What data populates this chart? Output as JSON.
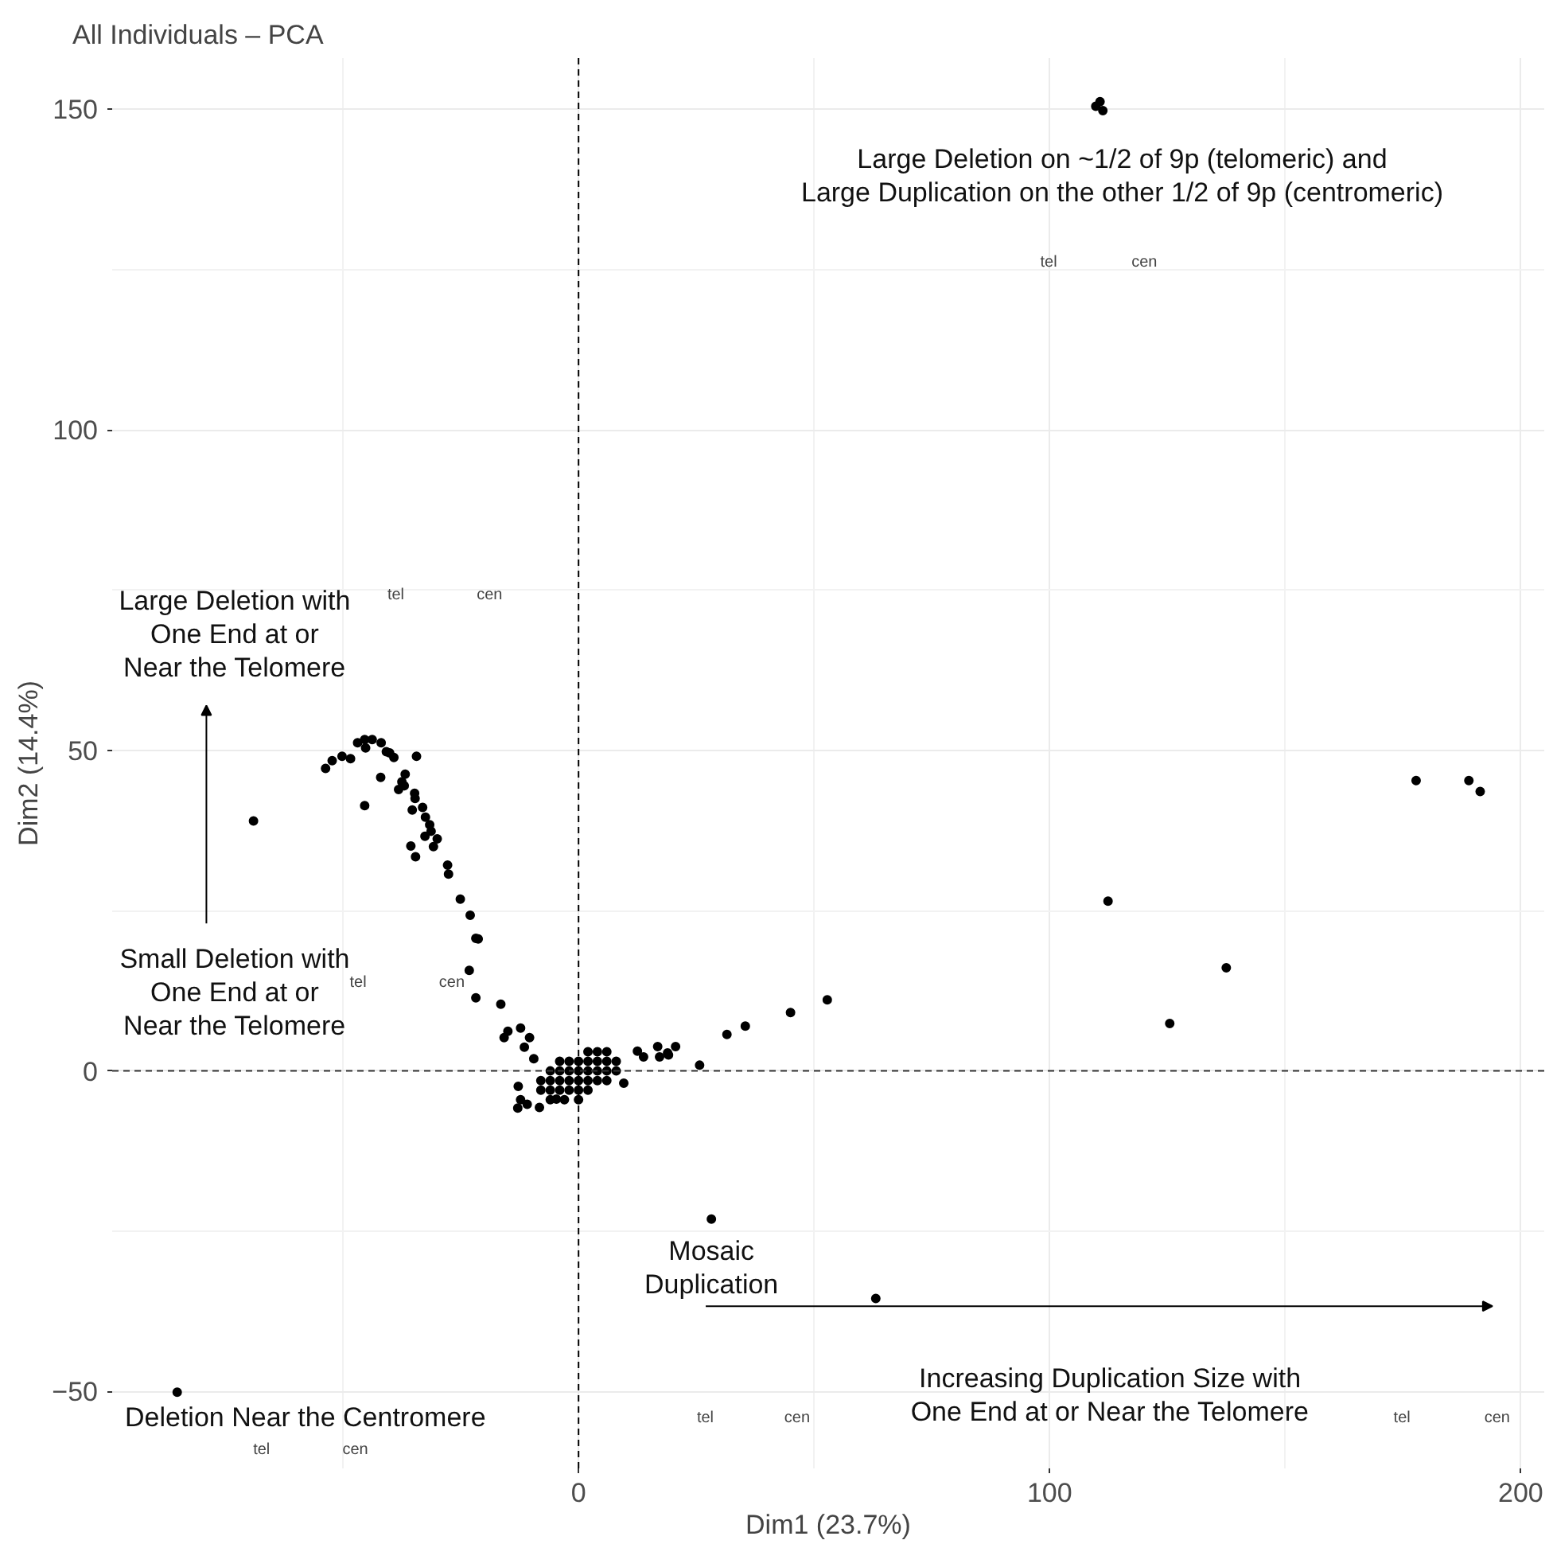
{
  "chart_data": {
    "type": "scatter",
    "title": "All Individuals – PCA",
    "xlabel": "Dim1 (23.7%)",
    "ylabel": "Dim2 (14.4%)",
    "xlim": [
      -99,
      205
    ],
    "ylim": [
      -62,
      158
    ],
    "xticks": [
      0,
      100,
      200
    ],
    "yticks": [
      {
        "value": -50,
        "label": "−50"
      },
      0,
      50,
      100,
      150
    ],
    "grid": true,
    "marker": "circle",
    "ref_lines": [
      {
        "axis": "x",
        "value": 0,
        "color": "#000000",
        "line_style": "dashed"
      },
      {
        "axis": "y",
        "value": 0,
        "color": "#333333",
        "line_style": "dashed"
      }
    ],
    "series": [
      {
        "color": "#000000",
        "x": [
          110.7,
          111.3,
          109.8,
          177.8,
          189,
          191.4,
          112.4,
          137.5,
          125.5,
          28.2,
          63.1,
          52.8,
          45,
          35.4,
          31.5,
          25.7,
          20.6,
          16.8,
          17.2,
          19.1,
          12.5,
          13.8,
          18.9,
          -85.2,
          -69,
          -53.7,
          -52.3,
          -50.2,
          -48.4,
          -46.9,
          -45.4,
          -43.8,
          -45.2,
          -41.9,
          -40.8,
          -40.1,
          -39.2,
          -34.4,
          -45.4,
          -42,
          -36.8,
          -37.5,
          -38.2,
          -37,
          -34.8,
          -34.7,
          -35.3,
          -33.1,
          -32.5,
          -31.6,
          -31.3,
          -32.6,
          -30,
          -30.8,
          -35.6,
          -34.6,
          -27.8,
          -27.6,
          -25.1,
          -23,
          -21.8,
          -21.3,
          -23.2,
          -21.8,
          -16.5,
          -15,
          -15.8,
          -12.3,
          -11.5,
          -10.4,
          -9.5,
          -12.8,
          -12.9,
          -10.9,
          -8.3,
          -12.3,
          -4.7,
          9.6,
          2,
          4,
          6,
          -4,
          -2,
          0,
          2,
          4,
          6,
          8,
          -6,
          -4,
          -2,
          0,
          2,
          4,
          6,
          8,
          -8,
          -6,
          -4,
          -2,
          0,
          2,
          4,
          6,
          -8,
          -6,
          -4,
          -2,
          0,
          2,
          -6,
          -3,
          0
        ],
        "values": [
          151.2,
          149.8,
          150.5,
          45.3,
          45.3,
          43.6,
          26.5,
          16.1,
          7.4,
          -23.1,
          -35.5,
          11.1,
          9.1,
          7,
          5.7,
          0.9,
          3.8,
          3.8,
          2.2,
          2.5,
          3.1,
          2.2,
          2.8,
          -50.1,
          39,
          47.2,
          48.4,
          49.1,
          48.7,
          51.2,
          51.7,
          51.7,
          50.4,
          51.2,
          49.8,
          49.6,
          48.9,
          49.1,
          41.4,
          45.8,
          46.3,
          45.1,
          43.9,
          44.5,
          43.3,
          42.5,
          40.7,
          41.1,
          39.6,
          38.4,
          37.4,
          36.6,
          36.2,
          35,
          35.1,
          33.4,
          32.1,
          30.7,
          26.8,
          24.3,
          20.7,
          20.6,
          15.7,
          11.4,
          10.4,
          6.2,
          5.2,
          6.7,
          3.7,
          5.2,
          1.9,
          -2.4,
          -5.8,
          -5.2,
          -5.7,
          -4.5,
          -4.4,
          -1.9,
          3,
          3,
          3,
          1.5,
          1.5,
          1.5,
          1.5,
          1.5,
          1.5,
          1.5,
          0,
          0,
          0,
          0,
          0,
          0,
          0,
          0,
          -1.5,
          -1.5,
          -1.5,
          -1.5,
          -1.5,
          -1.5,
          -1.5,
          -1.5,
          -3,
          -3,
          -3,
          -3,
          -3,
          -3,
          -4.5,
          -4.5,
          -4.5
        ]
      }
    ],
    "annotations": [
      "Large Deletion on ~1/2 of 9p (telomeric) and\nLarge Duplication on the other 1/2 of 9p (centromeric)",
      "Large Deletion with\nOne End at or\nNear the Telomere",
      "Small Deletion with\nOne End at or\nNear the Telomere",
      "Mosaic\nDuplication",
      "Increasing Duplication Size with\nOne End at or Near the Telomere",
      "Deletion Near the Centromere",
      "tel",
      "cen",
      "tel",
      "cen",
      "tel",
      "cen",
      "tel",
      "cen",
      "tel",
      "cen",
      "tel",
      "cen"
    ]
  }
}
